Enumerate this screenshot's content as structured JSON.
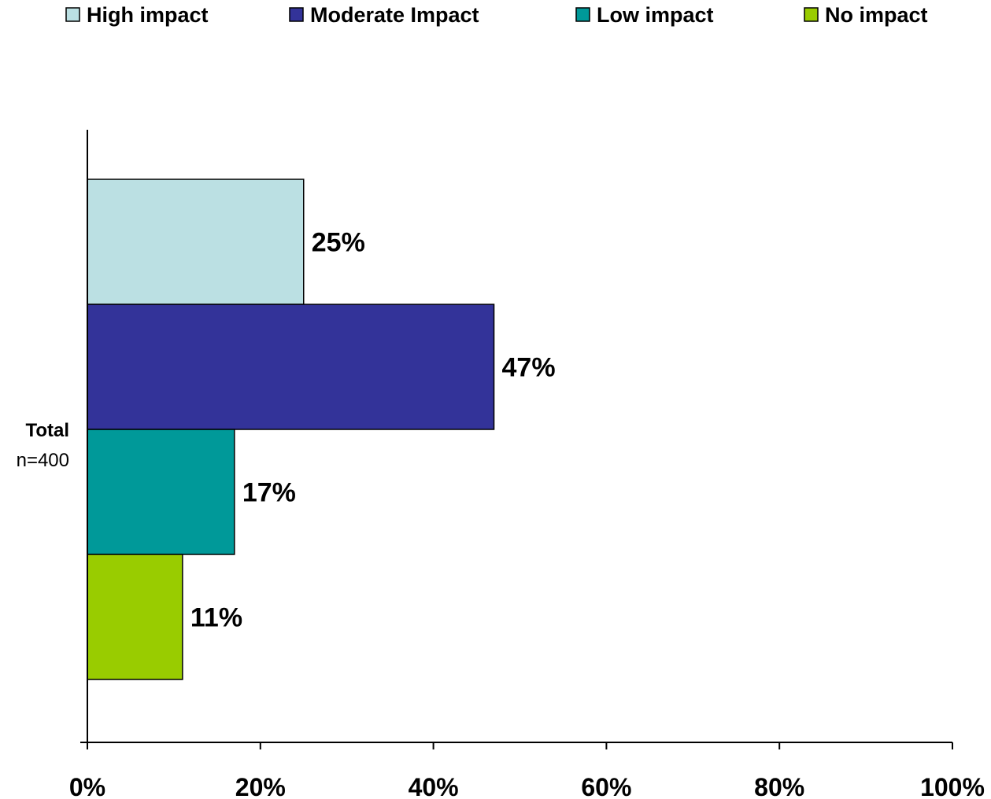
{
  "chart_data": {
    "type": "bar",
    "orientation": "horizontal",
    "categories": [
      "Total"
    ],
    "category_sublabel": "n=400",
    "series": [
      {
        "name": "High impact",
        "values": [
          25
        ],
        "label": "25%",
        "color": "#bbe0e3"
      },
      {
        "name": "Moderate Impact",
        "values": [
          47
        ],
        "label": "47%",
        "color": "#333399"
      },
      {
        "name": "Low impact",
        "values": [
          17
        ],
        "label": "17%",
        "color": "#009999"
      },
      {
        "name": "No impact",
        "values": [
          11
        ],
        "label": "11%",
        "color": "#99cc00"
      }
    ],
    "xlim": [
      0,
      100
    ],
    "xticks": [
      0,
      20,
      40,
      60,
      80,
      100
    ],
    "xtick_labels": [
      "0%",
      "20%",
      "40%",
      "60%",
      "80%",
      "100%"
    ],
    "title": "",
    "xlabel": "",
    "ylabel": "",
    "grid": false,
    "legend_position": "top"
  }
}
